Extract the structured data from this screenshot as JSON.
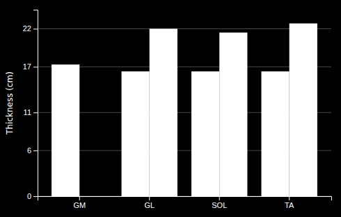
{
  "chart_data": {
    "type": "bar",
    "categories": [
      "GM",
      "GL",
      "SOL",
      "TA"
    ],
    "series": [
      {
        "color": "#ffffff",
        "values": [
          17.3,
          16.4,
          16.4,
          16.4
        ]
      },
      {
        "color": "#ffffff",
        "values": [
          0,
          22.0,
          21.5,
          22.7
        ]
      }
    ],
    "ylabel": "Thickness (cm)",
    "ylim": [
      0,
      24.5
    ],
    "yticks": [
      0,
      6,
      11,
      17,
      22
    ],
    "grid": true
  }
}
